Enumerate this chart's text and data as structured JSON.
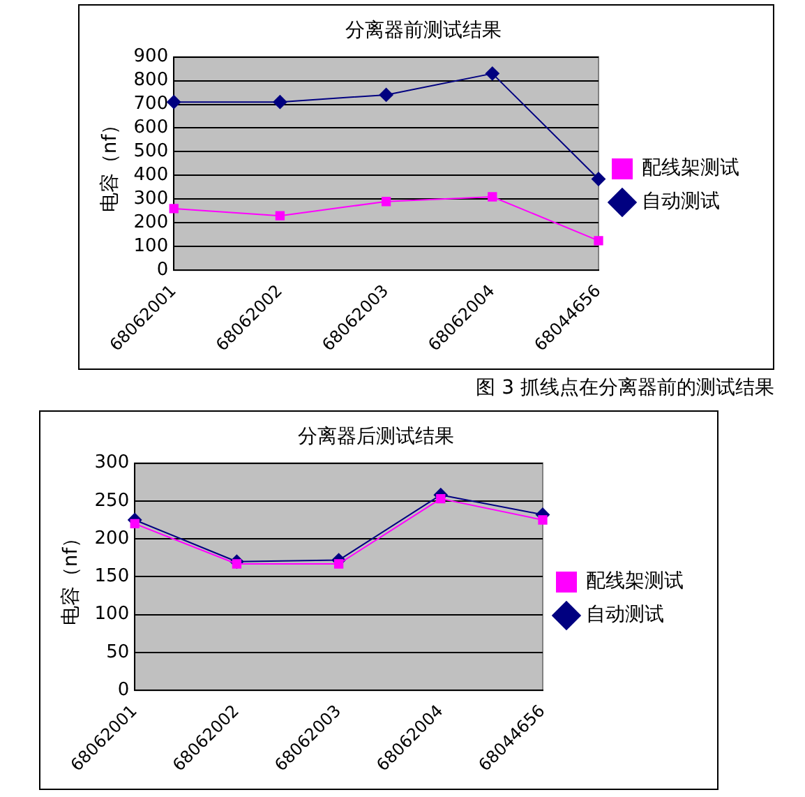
{
  "chart_data": [
    {
      "type": "line",
      "title": "分离器前测试结果",
      "ylabel": "电容（nf）",
      "categories": [
        "68062001",
        "68062002",
        "68062003",
        "68062004",
        "68044656"
      ],
      "series": [
        {
          "name": "自动测试",
          "color": "#000080",
          "marker": "diamond",
          "values": [
            710,
            710,
            740,
            830,
            385
          ]
        },
        {
          "name": "配线架测试",
          "color": "#ff00ff",
          "marker": "square",
          "values": [
            260,
            230,
            290,
            310,
            125
          ]
        }
      ],
      "ylim": [
        0,
        900
      ],
      "yticks": [
        0,
        100,
        200,
        300,
        400,
        500,
        600,
        700,
        800,
        900
      ],
      "grid": "y",
      "legend": "right",
      "annotations": [
        "图 3 抓线点在分离器前的测试结果"
      ]
    },
    {
      "type": "line",
      "title": "分离器后测试结果",
      "ylabel": "电容（nf）",
      "categories": [
        "68062001",
        "68062002",
        "68062003",
        "68062004",
        "68044656"
      ],
      "series": [
        {
          "name": "自动测试",
          "color": "#000080",
          "marker": "diamond",
          "values": [
            225,
            170,
            172,
            258,
            232
          ]
        },
        {
          "name": "配线架测试",
          "color": "#ff00ff",
          "marker": "square",
          "values": [
            220,
            167,
            167,
            253,
            225
          ]
        }
      ],
      "ylim": [
        0,
        300
      ],
      "yticks": [
        0,
        50,
        100,
        150,
        200,
        250,
        300
      ],
      "grid": "y",
      "legend": "right"
    }
  ]
}
